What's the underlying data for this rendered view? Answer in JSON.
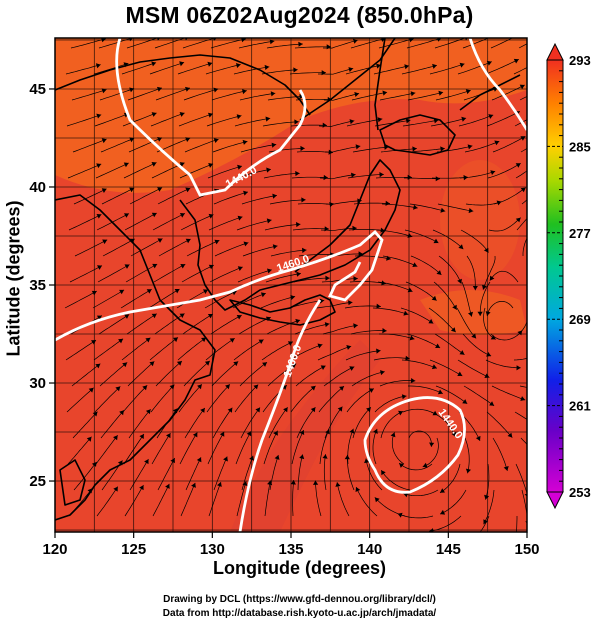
{
  "title": "MSM 06Z02Aug2024 (850.0hPa)",
  "xlabel": "Longitude (degrees)",
  "ylabel": "Latitude  (degrees)",
  "x_ticks": [
    "120",
    "125",
    "130",
    "135",
    "140",
    "145",
    "150"
  ],
  "y_ticks": [
    "25",
    "30",
    "35",
    "40",
    "45"
  ],
  "colorbar": {
    "labels": [
      "293",
      "285",
      "277",
      "269",
      "261",
      "253"
    ],
    "min": 253,
    "max": 293
  },
  "contour_labels": [
    "1440.0",
    "1460.0",
    "1460.0",
    "1440.0"
  ],
  "credits": {
    "line1": "Drawing by DCL (https://www.gfd-dennou.org/library/dcl/)",
    "line2": "Data from http://database.rish.kyoto-u.ac.jp/arch/jmadata/"
  },
  "colors": {
    "field_main": "#e8452c",
    "field_warm": "#f36a22",
    "contour": "#ffffff",
    "coast": "#000000"
  },
  "chart_data": {
    "type": "heatmap",
    "title": "MSM 06Z02Aug2024 (850.0hPa)",
    "xlabel": "Longitude (degrees)",
    "ylabel": "Latitude  (degrees)",
    "xlim": [
      120,
      150
    ],
    "ylim": [
      22.4,
      47.6
    ],
    "color_range": [
      253,
      293
    ],
    "contours": [
      1440.0,
      1460.0
    ]
  }
}
